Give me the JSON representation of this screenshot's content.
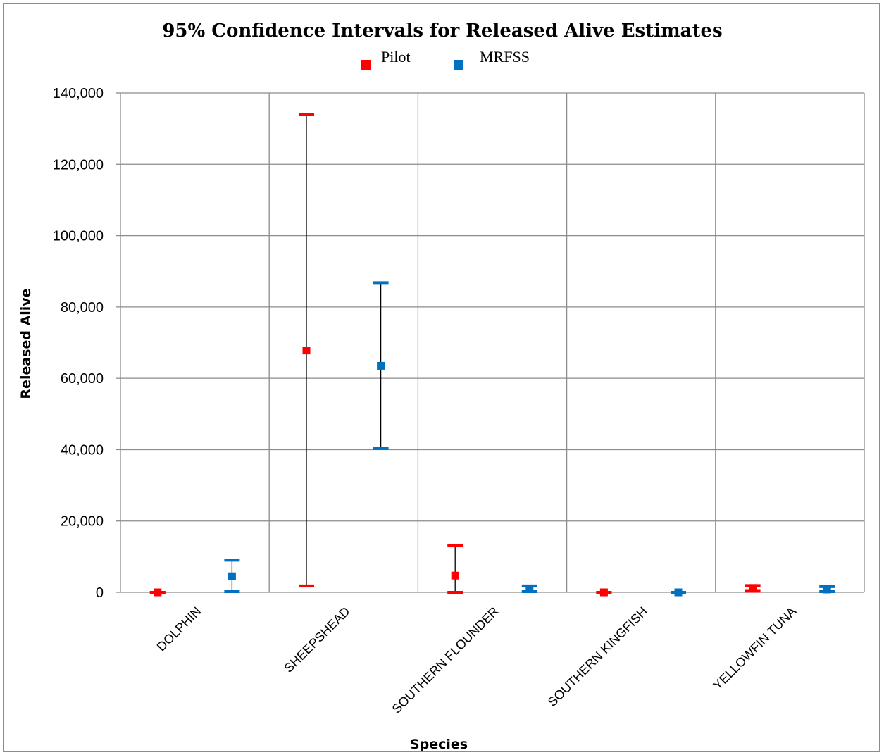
{
  "chart_data": {
    "type": "scatter",
    "title": "95% Confidence Intervals for Released Alive Estimates",
    "xlabel": "Species",
    "ylabel": "Released Alive",
    "ylim": [
      0,
      140000
    ],
    "yticks": [
      0,
      20000,
      40000,
      60000,
      80000,
      100000,
      120000,
      140000
    ],
    "ytick_labels": [
      "0",
      "20,000",
      "40,000",
      "60,000",
      "80,000",
      "100,000",
      "120,000",
      "140,000"
    ],
    "categories": [
      "DOLPHIN",
      "SHEEPSHEAD",
      "SOUTHERN FLOUNDER",
      "SOUTHERN KINGFISH",
      "YELLOWFIN TUNA"
    ],
    "grid": true,
    "legend_position": "top-center",
    "series": [
      {
        "name": "Pilot",
        "color": "#ff0000",
        "estimates": [
          0,
          67800,
          4700,
          0,
          1200
        ],
        "lower": [
          0,
          1800,
          0,
          0,
          300
        ],
        "upper": [
          0,
          134000,
          13200,
          0,
          1900
        ]
      },
      {
        "name": "MRFSS",
        "color": "#0070c0",
        "estimates": [
          4500,
          63500,
          900,
          0,
          800
        ],
        "lower": [
          200,
          40300,
          200,
          0,
          200
        ],
        "upper": [
          9000,
          86800,
          1800,
          0,
          1600
        ]
      }
    ]
  }
}
